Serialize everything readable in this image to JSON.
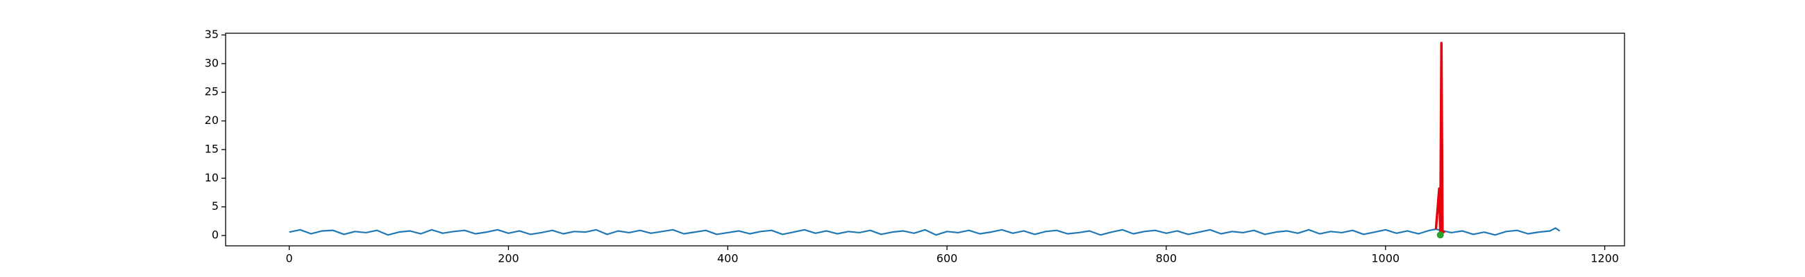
{
  "chart_data": {
    "type": "line",
    "xlim": [
      -58,
      1218
    ],
    "ylim": [
      -1.8,
      35.3
    ],
    "xticks": [
      0,
      200,
      400,
      600,
      800,
      1000,
      1200
    ],
    "yticks": [
      0,
      5,
      10,
      15,
      20,
      25,
      30,
      35
    ],
    "grid": false,
    "series": [
      {
        "color": "#1f77b4",
        "x": [
          0,
          10,
          20,
          30,
          40,
          50,
          60,
          70,
          80,
          90,
          100,
          110,
          120,
          130,
          140,
          150,
          160,
          170,
          180,
          190,
          200,
          210,
          220,
          230,
          240,
          250,
          260,
          270,
          280,
          290,
          300,
          310,
          320,
          330,
          340,
          350,
          360,
          370,
          380,
          390,
          400,
          410,
          420,
          430,
          440,
          450,
          460,
          470,
          480,
          490,
          500,
          510,
          520,
          530,
          540,
          550,
          560,
          570,
          580,
          590,
          600,
          610,
          620,
          630,
          640,
          650,
          660,
          670,
          680,
          690,
          700,
          710,
          720,
          730,
          740,
          750,
          760,
          770,
          780,
          790,
          800,
          810,
          820,
          830,
          840,
          850,
          860,
          870,
          880,
          890,
          900,
          910,
          920,
          930,
          940,
          950,
          960,
          970,
          980,
          990,
          1000,
          1010,
          1020,
          1030,
          1040,
          1046,
          1060,
          1070,
          1080,
          1090,
          1100,
          1110,
          1120,
          1130,
          1140,
          1150,
          1155,
          1159
        ],
        "values": [
          0.6,
          1.0,
          0.3,
          0.8,
          0.9,
          0.2,
          0.7,
          0.5,
          0.9,
          0.1,
          0.6,
          0.8,
          0.3,
          1.0,
          0.4,
          0.7,
          0.9,
          0.3,
          0.6,
          1.0,
          0.4,
          0.8,
          0.2,
          0.5,
          0.9,
          0.3,
          0.7,
          0.6,
          1.0,
          0.2,
          0.8,
          0.5,
          0.9,
          0.4,
          0.7,
          1.0,
          0.3,
          0.6,
          0.9,
          0.2,
          0.5,
          0.8,
          0.3,
          0.7,
          0.9,
          0.2,
          0.6,
          1.0,
          0.4,
          0.8,
          0.3,
          0.7,
          0.5,
          0.9,
          0.2,
          0.6,
          0.8,
          0.4,
          1.0,
          0.1,
          0.7,
          0.5,
          0.9,
          0.3,
          0.6,
          1.0,
          0.4,
          0.8,
          0.2,
          0.7,
          0.9,
          0.3,
          0.5,
          0.8,
          0.1,
          0.6,
          1.0,
          0.3,
          0.7,
          0.9,
          0.4,
          0.8,
          0.2,
          0.6,
          1.0,
          0.3,
          0.7,
          0.5,
          0.9,
          0.2,
          0.6,
          0.8,
          0.4,
          1.0,
          0.3,
          0.7,
          0.5,
          0.9,
          0.2,
          0.6,
          1.0,
          0.4,
          0.8,
          0.3,
          0.9,
          1.1,
          0.5,
          0.8,
          0.2,
          0.6,
          0.1,
          0.7,
          0.9,
          0.3,
          0.6,
          0.8,
          1.3,
          0.8
        ]
      },
      {
        "color": "#e8000b",
        "x": [
          1046,
          1049,
          1050,
          1051,
          1052,
          1054
        ],
        "values": [
          1.1,
          8.2,
          0.4,
          33.6,
          0.5,
          0.7
        ]
      },
      {
        "color": "#2ca02c",
        "marker": true,
        "x": [
          1050
        ],
        "values": [
          0.1
        ]
      }
    ]
  }
}
